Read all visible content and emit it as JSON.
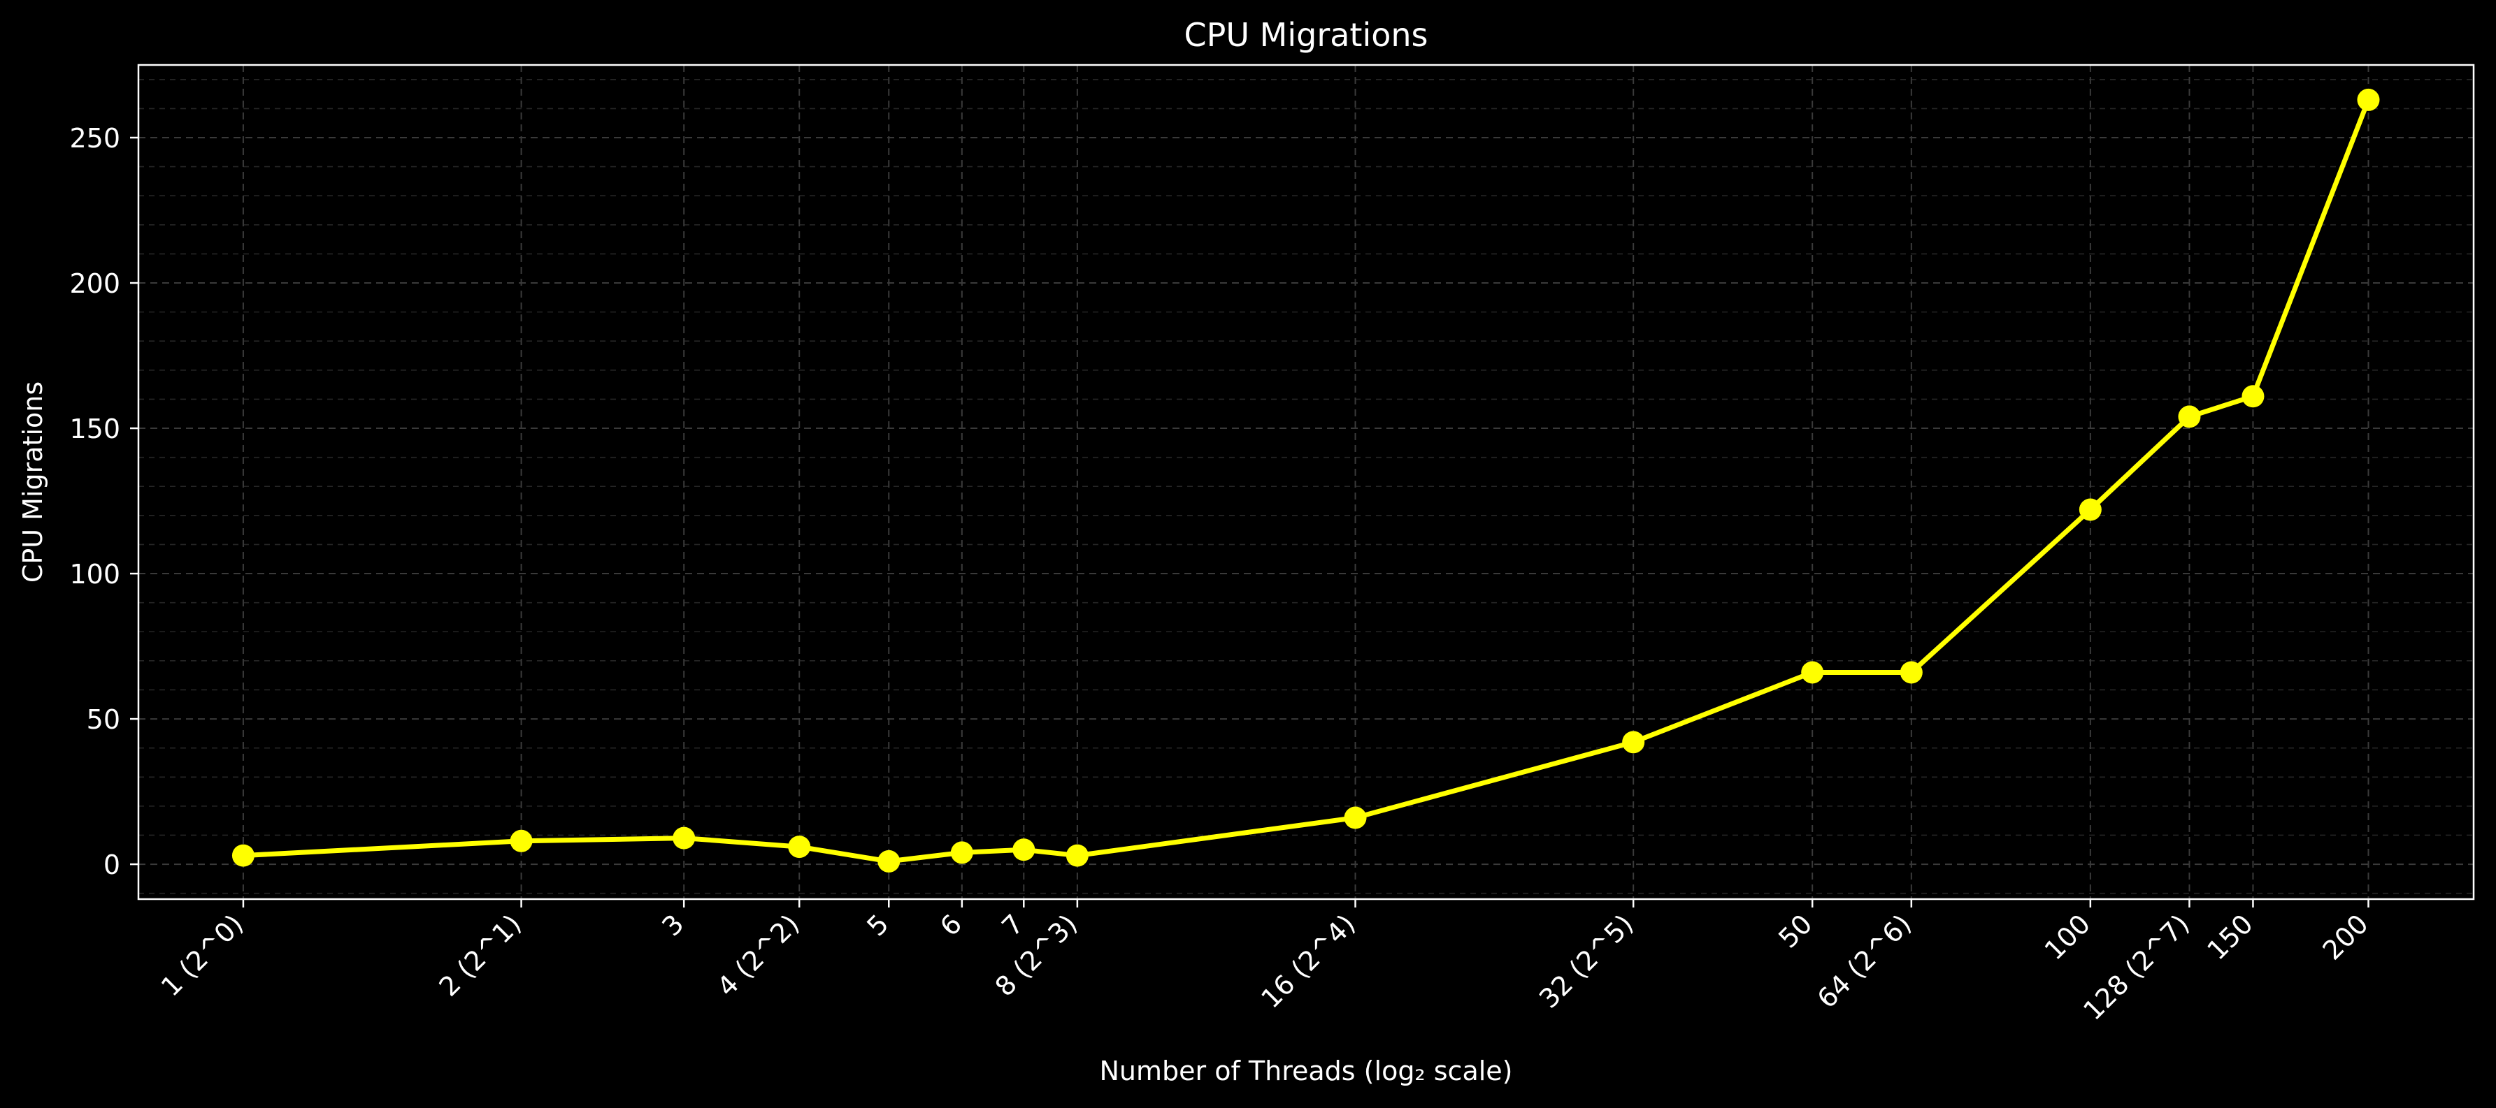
{
  "chart_data": {
    "type": "line",
    "title": "CPU Migrations",
    "xlabel": "Number of Threads (log₂ scale)",
    "ylabel": "CPU Migrations",
    "x_scale": "log2",
    "x": [
      1,
      2,
      3,
      4,
      5,
      6,
      7,
      8,
      16,
      32,
      50,
      64,
      100,
      128,
      150,
      200
    ],
    "x_tick_labels": [
      "1 (2^0)",
      "2 (2^1)",
      "3",
      "4 (2^2)",
      "5",
      "6",
      "7",
      "8 (2^3)",
      "16 (2^4)",
      "32 (2^5)",
      "50",
      "64 (2^6)",
      "100",
      "128 (2^7)",
      "150",
      "200"
    ],
    "series": [
      {
        "color": "#ffff00",
        "marker": "circle",
        "values": [
          3,
          8,
          9,
          6,
          1,
          4,
          5,
          3,
          16,
          42,
          66,
          66,
          122,
          154,
          161,
          263
        ]
      }
    ],
    "xlim": [
      0.77,
      260
    ],
    "ylim": [
      -12,
      275
    ],
    "y_ticks": [
      0,
      50,
      100,
      150,
      200,
      250
    ],
    "y_tick_labels": [
      "0",
      "50",
      "100",
      "150",
      "200",
      "250"
    ],
    "grid": "on (major and minor, dashed)",
    "background": "#000000",
    "legend": "none"
  }
}
